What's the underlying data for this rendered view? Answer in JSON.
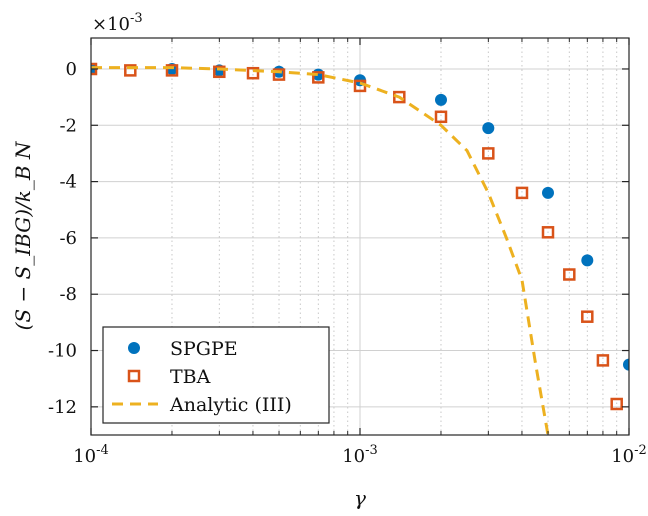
{
  "chart_data": {
    "type": "scatter",
    "title": "",
    "xlabel": "γ",
    "ylabel": "(S − S_IBG)/k_B N",
    "xscale": "log",
    "xlim": [
      0.0001,
      0.01
    ],
    "ylim": [
      -13,
      1.1
    ],
    "y_multiplier_label": "×10",
    "y_multiplier_exp": "-3",
    "grid": true,
    "legend_position": "bottom-left",
    "x_ticks": [
      {
        "value": 0.0001,
        "base": "10",
        "exp": "-4"
      },
      {
        "value": 0.001,
        "base": "10",
        "exp": "-3"
      },
      {
        "value": 0.01,
        "base": "10",
        "exp": "-2"
      }
    ],
    "y_ticks": [
      {
        "value": 0,
        "label": "0"
      },
      {
        "value": -2,
        "label": "-2"
      },
      {
        "value": -4,
        "label": "-4"
      },
      {
        "value": -6,
        "label": "-6"
      },
      {
        "value": -8,
        "label": "-8"
      },
      {
        "value": -10,
        "label": "-10"
      },
      {
        "value": -12,
        "label": "-12"
      }
    ],
    "series": [
      {
        "name": "SPGPE",
        "marker": "circle",
        "color": "#0072BD",
        "points": [
          {
            "x": 0.0001,
            "y": 0.0
          },
          {
            "x": 0.0002,
            "y": 0.0
          },
          {
            "x": 0.0003,
            "y": -0.05
          },
          {
            "x": 0.0005,
            "y": -0.1
          },
          {
            "x": 0.0007,
            "y": -0.2
          },
          {
            "x": 0.001,
            "y": -0.4
          },
          {
            "x": 0.002,
            "y": -1.1
          },
          {
            "x": 0.003,
            "y": -2.1
          },
          {
            "x": 0.005,
            "y": -4.4
          },
          {
            "x": 0.007,
            "y": -6.8
          },
          {
            "x": 0.01,
            "y": -10.5
          }
        ]
      },
      {
        "name": "TBA",
        "marker": "square",
        "color": "#D95319",
        "points": [
          {
            "x": 0.0001,
            "y": 0.0
          },
          {
            "x": 0.00014,
            "y": -0.05
          },
          {
            "x": 0.0002,
            "y": -0.05
          },
          {
            "x": 0.0003,
            "y": -0.1
          },
          {
            "x": 0.0004,
            "y": -0.15
          },
          {
            "x": 0.0005,
            "y": -0.2
          },
          {
            "x": 0.0007,
            "y": -0.3
          },
          {
            "x": 0.001,
            "y": -0.6
          },
          {
            "x": 0.0014,
            "y": -1.0
          },
          {
            "x": 0.002,
            "y": -1.7
          },
          {
            "x": 0.003,
            "y": -3.0
          },
          {
            "x": 0.004,
            "y": -4.4
          },
          {
            "x": 0.005,
            "y": -5.8
          },
          {
            "x": 0.006,
            "y": -7.3
          },
          {
            "x": 0.007,
            "y": -8.8
          },
          {
            "x": 0.008,
            "y": -10.35
          },
          {
            "x": 0.009,
            "y": -11.9
          }
        ]
      },
      {
        "name": "Analytic (III)",
        "marker": "dashed-line",
        "color": "#EDB120",
        "points": [
          {
            "x": 0.0001,
            "y": 0.05
          },
          {
            "x": 0.00014,
            "y": 0.05
          },
          {
            "x": 0.0002,
            "y": 0.05
          },
          {
            "x": 0.0003,
            "y": 0.0
          },
          {
            "x": 0.0005,
            "y": -0.1
          },
          {
            "x": 0.0007,
            "y": -0.2
          },
          {
            "x": 0.001,
            "y": -0.5
          },
          {
            "x": 0.0014,
            "y": -1.0
          },
          {
            "x": 0.002,
            "y": -2.0
          },
          {
            "x": 0.0025,
            "y": -2.9
          },
          {
            "x": 0.003,
            "y": -4.4
          },
          {
            "x": 0.0035,
            "y": -6.0
          },
          {
            "x": 0.004,
            "y": -7.5
          },
          {
            "x": 0.0045,
            "y": -10.5
          },
          {
            "x": 0.005,
            "y": -13.0
          }
        ]
      }
    ]
  }
}
